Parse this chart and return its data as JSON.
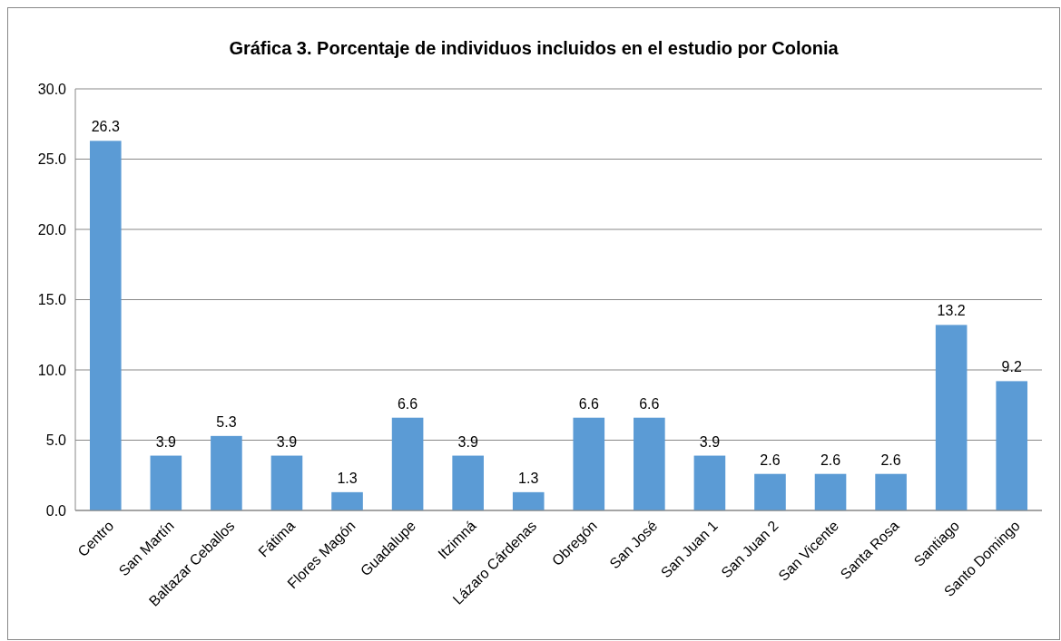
{
  "chart_data": {
    "type": "bar",
    "title": "Gráfica 3. Porcentaje de individuos incluidos en el estudio por Colonia",
    "categories": [
      "Centro",
      "San Martín",
      "Baltazar Ceballos",
      "Fátima",
      "Flores Magón",
      "Guadalupe",
      "Itzimná",
      "Lázaro Cárdenas",
      "Obregón",
      "San José",
      "San Juan 1",
      "San Juan 2",
      "San Vicente",
      "Santa Rosa",
      "Santiago",
      "Santo Domingo"
    ],
    "values": [
      26.3,
      3.9,
      5.3,
      3.9,
      1.3,
      6.6,
      3.9,
      1.3,
      6.6,
      6.6,
      3.9,
      2.6,
      2.6,
      2.6,
      13.2,
      9.2
    ],
    "color": "#5b9bd5",
    "ylim": [
      0,
      30
    ],
    "yticks": [
      {
        "value": 0,
        "label": "0.0"
      },
      {
        "value": 5,
        "label": "5.0"
      },
      {
        "value": 10,
        "label": "10.0"
      },
      {
        "value": 15,
        "label": "15.0"
      },
      {
        "value": 20,
        "label": "20.0"
      },
      {
        "value": 25,
        "label": "25.0"
      },
      {
        "value": 30,
        "label": "30.0"
      }
    ],
    "grid": "y",
    "data_labels": true
  }
}
